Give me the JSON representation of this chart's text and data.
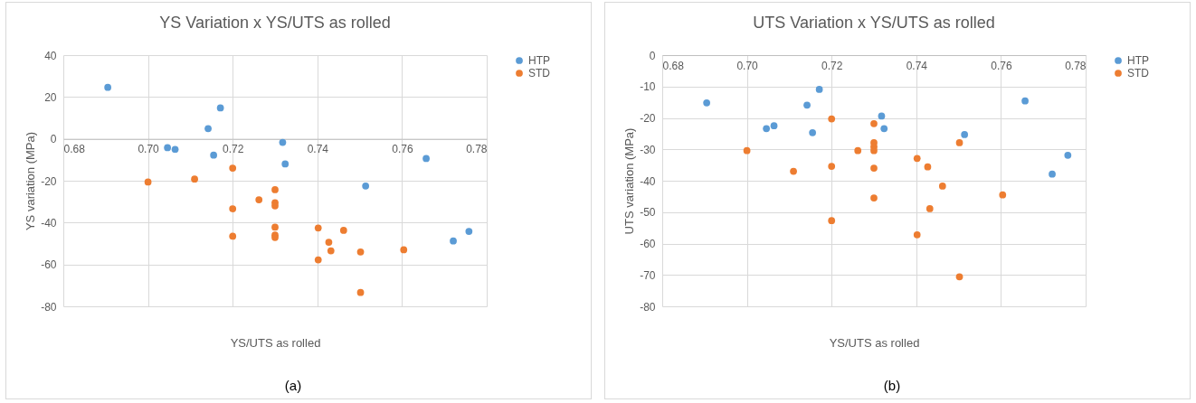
{
  "chart_data": [
    {
      "type": "scatter",
      "title": "YS Variation x YS/UTS as rolled",
      "xlabel": "YS/UTS as rolled",
      "ylabel": "YS variation (MPa)",
      "xlim": [
        0.68,
        0.78
      ],
      "xticks": [
        0.68,
        {
          "value": 0.7,
          "label": "0.70"
        },
        0.72,
        0.74,
        0.76,
        0.78
      ],
      "ylim": [
        -80,
        40
      ],
      "yticks": [
        -80,
        -60,
        -40,
        -20,
        0,
        20,
        40
      ],
      "grid": true,
      "legend": "right",
      "marker": "circle",
      "annotations": [
        "(a)"
      ],
      "series": [
        {
          "name": "HTP",
          "color": "#5b9bd5",
          "x": [
            0.6905,
            0.7046,
            0.7064,
            0.7142,
            0.7171,
            0.7155,
            0.7318,
            0.7324,
            0.7657,
            0.7514,
            0.7721,
            0.7758
          ],
          "values": [
            24.6,
            -4.2,
            -5,
            4.9,
            14.8,
            -7.8,
            -1.7,
            -12,
            -9.4,
            -22.5,
            -48.8,
            -44.2
          ]
        },
        {
          "name": "STD",
          "color": "#ed7d31",
          "x": [
            0.7,
            0.711,
            0.72,
            0.72,
            0.72,
            0.7262,
            0.73,
            0.73,
            0.73,
            0.73,
            0.73,
            0.73,
            0.7402,
            0.7427,
            0.7432,
            0.7462,
            0.7402,
            0.7502,
            0.7502,
            0.7604
          ],
          "values": [
            -20.6,
            -19.2,
            -14,
            -33.4,
            -46.5,
            -29.1,
            -24.3,
            -30.5,
            -32,
            -42.2,
            -46,
            -47.1,
            -42.6,
            -49.4,
            -53.5,
            -43.7,
            -57.8,
            -54,
            -73.4,
            -53
          ]
        }
      ]
    },
    {
      "type": "scatter",
      "title": "UTS Variation x YS/UTS as rolled",
      "xlabel": "YS/UTS as rolled",
      "ylabel": "UTS variation (MPa)",
      "xlim": [
        0.68,
        0.78
      ],
      "xticks": [
        0.68,
        {
          "value": 0.7,
          "label": "0.70"
        },
        0.72,
        0.74,
        0.76,
        0.78
      ],
      "ylim": [
        -80,
        0
      ],
      "yticks": [
        -80,
        -70,
        -60,
        -50,
        -40,
        -30,
        -20,
        -10,
        0
      ],
      "grid": true,
      "legend": "right",
      "marker": "circle",
      "annotations": [
        "(b)"
      ],
      "series": [
        {
          "name": "HTP",
          "color": "#5b9bd5",
          "x": [
            0.6905,
            0.7046,
            0.7064,
            0.7142,
            0.7171,
            0.7155,
            0.7318,
            0.7324,
            0.7657,
            0.7514,
            0.7721,
            0.7758
          ],
          "values": [
            -15.2,
            -23.4,
            -22.5,
            -15.9,
            -10.9,
            -24.7,
            -19.4,
            -23.4,
            -14.6,
            -25.3,
            -37.9,
            -31.9
          ]
        },
        {
          "name": "STD",
          "color": "#ed7d31",
          "x": [
            0.7,
            0.711,
            0.72,
            0.72,
            0.72,
            0.7262,
            0.73,
            0.73,
            0.73,
            0.73,
            0.73,
            0.73,
            0.7402,
            0.7427,
            0.7432,
            0.7462,
            0.7402,
            0.7502,
            0.7502,
            0.7604
          ],
          "values": [
            -30.4,
            -37,
            -20.3,
            -35.4,
            -52.7,
            -30.4,
            -21.8,
            -27.9,
            -29.2,
            -30.4,
            -36,
            -45.5,
            -32.9,
            -35.6,
            -48.9,
            -41.7,
            -57.2,
            -27.9,
            -70.6,
            -44.5
          ]
        }
      ]
    }
  ]
}
